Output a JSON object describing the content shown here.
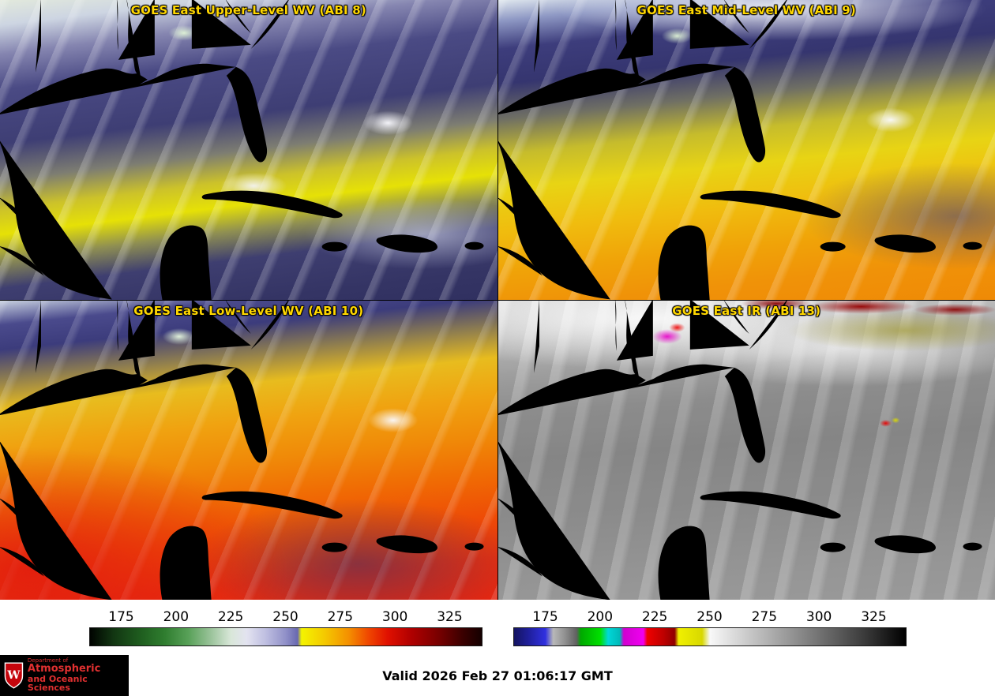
{
  "panels": [
    {
      "title": "GOES East Upper-Level WV (ABI 8)"
    },
    {
      "title": "GOES East Mid-Level WV (ABI 9)"
    },
    {
      "title": "GOES East Low-Level WV (ABI 10)"
    },
    {
      "title": "GOES East IR (ABI 13)"
    }
  ],
  "colorbars": {
    "ticks": [
      "175",
      "200",
      "225",
      "250",
      "275",
      "300",
      "325"
    ],
    "wv_css": "linear-gradient(to right,#000300 0%,#123612 6%,#1f5e1f 13%,#2f7d2f 19%,#57a057 25%,#9cc49c 31%,#d9e7d9 36%,#e3e3f0 40%,#bdbde0 45%,#9090c8 50%,#6868b0 53%,#f4f400 54%,#f4c800 60%,#f49000 66%,#f04800 71%,#e01000 76%,#b00000 82%,#780000 89%,#3c0000 95%,#140000 100%)",
    "ir_css": "linear-gradient(to right,#141460 0%,#2020a0 4%,#3030e0 8%,#b8b8b8 10%,#909090 13%,#606060 16%,#00a800 17%,#00e000 22%,#00d8d8 24%,#00b8b8 27%,#d000d0 28%,#f000f0 33%,#f00000 34%,#c00000 38%,#900000 41%,#f0f000 42%,#d8d800 48%,#f8f8f8 50%,#c8c8c8 60%,#989898 70%,#686868 80%,#383838 90%,#000000 100%)"
  },
  "footer": {
    "valid_label": "Valid 2026 Feb 27 01:06:17 GMT"
  },
  "logo": {
    "letter": "W",
    "line1": "Department of",
    "line2": "Atmospheric",
    "line3": "and Oceanic Sciences"
  },
  "colors": {
    "title": "#ffd700",
    "border-state": "#ff2222",
    "coastline": "#9a5a20",
    "island": "#1e9e1e",
    "logo-red": "#e03030"
  }
}
